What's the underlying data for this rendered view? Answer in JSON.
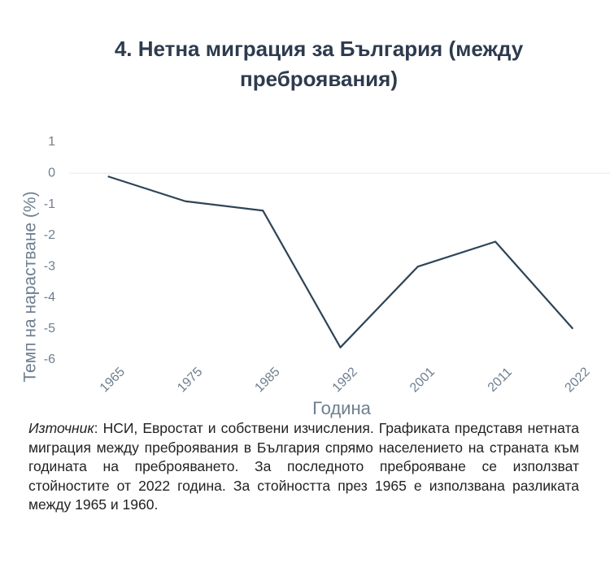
{
  "chart_data": {
    "type": "line",
    "title": "4. Нетна миграция за България (между",
    "title_line2": "преброявания)",
    "x_label": "Година",
    "y_label": "Темп на нарастване (%)",
    "categories": [
      "1965",
      "1975",
      "1985",
      "1992",
      "2001",
      "2011",
      "2022"
    ],
    "values": [
      -0.1,
      -0.9,
      -1.2,
      -5.6,
      -3.0,
      -2.2,
      -5.0
    ],
    "color": "#2e4457",
    "ylim": [
      -6,
      1
    ],
    "yticks": [
      1,
      0,
      -1,
      -2,
      -3,
      -4,
      -5,
      -6
    ],
    "zeroline": true
  },
  "source": {
    "label": "Източник",
    "text": ": НСИ, Евростат и собствени изчисления. Графиката представя нетната миграция между преброявания в България спрямо населението на страната към годината на преброяването. За последното преброяване се използват стойностите от 2022 година. За стойността през 1965 е използвана разликата между 1965 и 1960."
  }
}
